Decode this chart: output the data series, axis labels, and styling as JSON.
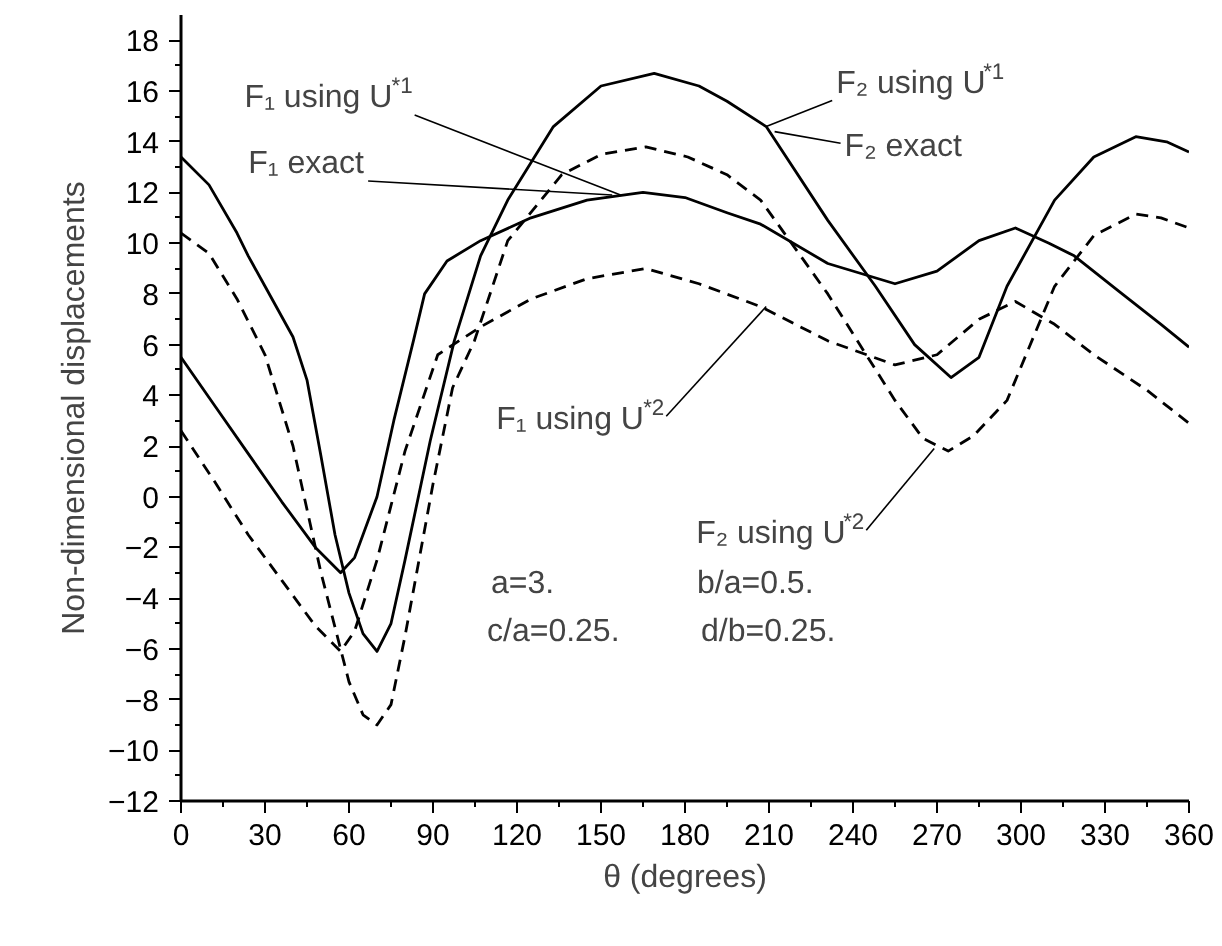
{
  "chart_data": {
    "type": "line",
    "xlabel": "θ (degrees)",
    "ylabel": "Non-dimensional displacements",
    "xlim": [
      0,
      360
    ],
    "ylim": [
      -12,
      19
    ],
    "xticks": [
      0,
      {
        "value": 15,
        "label": null
      },
      30,
      {
        "value": 45,
        "label": null
      },
      60,
      {
        "value": 75,
        "label": null
      },
      90,
      {
        "value": 105,
        "label": null
      },
      120,
      {
        "value": 135,
        "label": null
      },
      150,
      {
        "value": 165,
        "label": null
      },
      180,
      {
        "value": 195,
        "label": null
      },
      210,
      {
        "value": 225,
        "label": null
      },
      240,
      {
        "value": 255,
        "label": null
      },
      270,
      {
        "value": 285,
        "label": null
      },
      300,
      {
        "value": 315,
        "label": null
      },
      330,
      {
        "value": 345,
        "label": null
      },
      360
    ],
    "yticks": [
      -12,
      {
        "value": -11,
        "label": null
      },
      -10,
      {
        "value": -9,
        "label": null
      },
      -8,
      {
        "value": -7,
        "label": null
      },
      -6,
      {
        "value": -5,
        "label": null
      },
      -4,
      {
        "value": -3,
        "label": null
      },
      -2,
      {
        "value": -1,
        "label": null
      },
      0,
      {
        "value": 1,
        "label": null
      },
      2,
      {
        "value": 3,
        "label": null
      },
      4,
      {
        "value": 5,
        "label": null
      },
      6,
      {
        "value": 7,
        "label": null
      },
      8,
      {
        "value": 9,
        "label": null
      },
      10,
      {
        "value": 11,
        "label": null
      },
      12,
      {
        "value": 13,
        "label": null
      },
      14,
      {
        "value": 15,
        "label": null
      },
      16,
      {
        "value": 17,
        "label": null
      },
      18
    ],
    "grid": false,
    "series": [
      {
        "color": "#000000",
        "line_style": "solid",
        "x": [
          0,
          10,
          20,
          24,
          30,
          40,
          45,
          50,
          55,
          60,
          65,
          70,
          75,
          80,
          89,
          97.6,
          107,
          116.7,
          133,
          150,
          169,
          185,
          195,
          209,
          231,
          248,
          262,
          275,
          285,
          295,
          312,
          326,
          341,
          352,
          360
        ],
        "values": [
          13.4,
          12.3,
          10.4,
          9.5,
          8.3,
          6.3,
          4.6,
          1.6,
          -1.5,
          -3.8,
          -5.4,
          -6.1,
          -5.0,
          -2.5,
          2.2,
          6.15,
          9.5,
          11.7,
          14.6,
          16.2,
          16.7,
          16.2,
          15.6,
          14.6,
          10.9,
          8.3,
          6.0,
          4.7,
          5.5,
          8.3,
          11.7,
          13.4,
          14.2,
          14.0,
          13.6
        ]
      },
      {
        "color": "#000000",
        "line_style": "solid",
        "x": [
          0,
          12,
          24,
          36,
          48,
          57,
          62,
          70,
          76,
          83,
          87,
          95,
          107,
          125,
          145,
          165,
          180,
          195,
          207,
          231,
          255,
          270,
          285,
          298,
          310,
          319,
          335,
          350,
          360
        ],
        "values": [
          5.5,
          3.6,
          1.7,
          -0.2,
          -2.0,
          -3.0,
          -2.4,
          0,
          3,
          6.15,
          8.0,
          9.3,
          10.1,
          11.0,
          11.7,
          12.0,
          11.8,
          11.2,
          10.75,
          9.2,
          8.4,
          8.9,
          10.1,
          10.6,
          10.0,
          9.5,
          8.1,
          6.8,
          5.9
        ]
      },
      {
        "color": "#000000",
        "line_style": "dashed",
        "x": [
          0,
          10,
          20,
          30,
          40,
          50,
          60,
          65,
          70,
          75,
          80,
          90,
          97,
          104.8,
          116.7,
          136,
          150,
          166,
          181,
          195,
          207,
          231,
          255,
          265,
          274,
          283,
          295,
          312,
          326,
          341,
          350,
          360
        ],
        "values": [
          10.4,
          9.6,
          7.8,
          5.6,
          2.0,
          -3.0,
          -7.3,
          -8.6,
          -9.0,
          -8.2,
          -5.5,
          0.5,
          4.3,
          6.15,
          10.1,
          12.7,
          13.5,
          13.8,
          13.4,
          12.7,
          11.7,
          8.0,
          3.8,
          2.3,
          1.8,
          2.4,
          3.8,
          8.3,
          10.3,
          11.15,
          11.0,
          10.6
        ]
      },
      {
        "color": "#000000",
        "line_style": "dashed",
        "x": [
          0,
          12,
          24,
          36,
          48,
          57,
          62,
          70,
          80,
          91.7,
          100,
          107,
          125,
          145,
          166,
          185,
          207,
          231,
          255,
          270,
          285,
          298,
          312,
          326,
          345,
          360
        ],
        "values": [
          2.6,
          0.6,
          -1.5,
          -3.3,
          -5.1,
          -6.1,
          -5.3,
          -2.5,
          1.8,
          5.6,
          6.2,
          6.7,
          7.8,
          8.6,
          9.0,
          8.4,
          7.5,
          6.15,
          5.2,
          5.6,
          7.0,
          7.7,
          6.8,
          5.6,
          4.2,
          2.9
        ]
      }
    ],
    "annotations": [
      {
        "text": "F₁ using U$^{*1}$",
        "x": 157,
        "y": 11.9
      },
      {
        "text": "F₁ exact",
        "x": 154,
        "y": 11.9
      },
      {
        "text": "F₁ using U$^{*2}$",
        "x": 209,
        "y": 7.5
      },
      {
        "text": "F₂ using U$^{*1}$",
        "x": 209,
        "y": 14.6
      },
      {
        "text": "F₂ exact",
        "x": 212,
        "y": 14.4
      },
      {
        "text": "F₂ using U$^{*2}$",
        "x": 269,
        "y": 1.9
      },
      "a=3.",
      "b/a=0.5.",
      "c/a=0.25.",
      "d/b=0.25."
    ]
  }
}
